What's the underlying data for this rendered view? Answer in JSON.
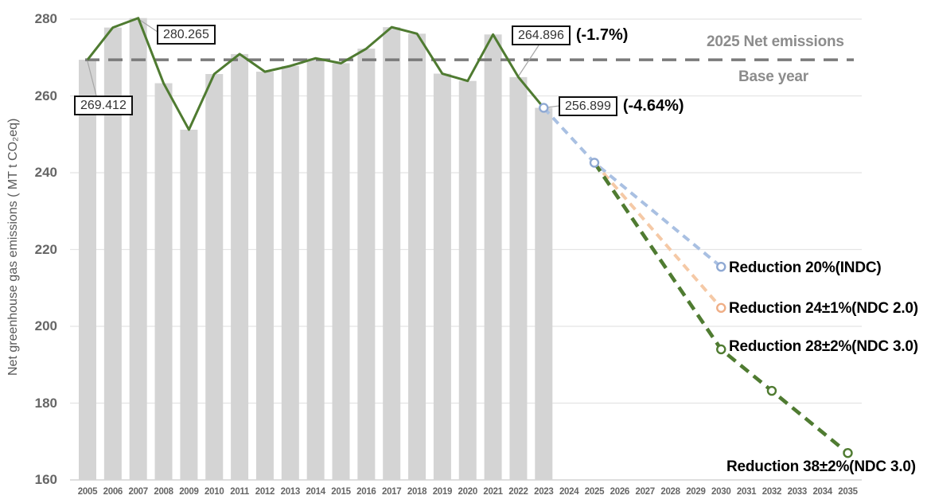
{
  "chart_data": {
    "type": "bar",
    "title": "",
    "xlabel": "",
    "ylabel": "Net greenhouse gas emissions ( MT t CO₂eq)",
    "ylim": [
      160,
      280
    ],
    "yticks": [
      280,
      260,
      240,
      220,
      200,
      180,
      160
    ],
    "grid": "horizontal",
    "years_axis": [
      2005,
      2006,
      2007,
      2008,
      2009,
      2010,
      2011,
      2012,
      2013,
      2014,
      2015,
      2016,
      2017,
      2018,
      2019,
      2020,
      2021,
      2022,
      2023,
      2024,
      2025,
      2026,
      2027,
      2028,
      2029,
      2030,
      2031,
      2032,
      2033,
      2034,
      2035
    ],
    "years_hist": [
      2005,
      2006,
      2007,
      2008,
      2009,
      2010,
      2011,
      2012,
      2013,
      2014,
      2015,
      2016,
      2017,
      2018,
      2019,
      2020,
      2021,
      2022,
      2023
    ],
    "values": [
      269.412,
      277.8,
      280.265,
      263.3,
      251.2,
      265.7,
      270.9,
      266.3,
      267.8,
      269.8,
      268.5,
      272.3,
      277.9,
      276.2,
      265.8,
      263.9,
      276.0,
      264.896,
      256.899
    ],
    "series_note": "gray bars and green solid line both show historical net emissions 2005-2023",
    "baseline": {
      "value": 269.412,
      "label_above": "2025 Net emissions",
      "label_below": "Base year",
      "color": "#7a7a7a"
    },
    "callouts": [
      {
        "text": "269.412",
        "year": 2005,
        "value": 269.412
      },
      {
        "text": "280.265",
        "year": 2007,
        "value": 280.265
      },
      {
        "text": "264.896",
        "pct": "(-1.7%)",
        "year": 2022,
        "value": 264.896
      },
      {
        "text": "256.899",
        "pct": "(-4.64%)",
        "year": 2023,
        "value": 256.899
      }
    ],
    "projections": [
      {
        "name": "INDC",
        "label": "Reduction 20%(INDC)",
        "color": "#a9c0e2",
        "marker_color": "#8fa9d3",
        "points": [
          [
            2023,
            256.899
          ],
          [
            2025,
            242.6
          ],
          [
            2030,
            215.5
          ]
        ],
        "markers": [
          [
            2023,
            256.899
          ],
          [
            2025,
            242.6
          ],
          [
            2030,
            215.5
          ]
        ]
      },
      {
        "name": "NDC 2.0",
        "label": "Reduction 24±1%(NDC 2.0)",
        "color": "#f5c9a6",
        "marker_color": "#efae86",
        "points": [
          [
            2025,
            242.6
          ],
          [
            2030,
            204.8
          ]
        ],
        "markers": [
          [
            2030,
            204.8
          ]
        ]
      },
      {
        "name": "NDC 3.0",
        "label": "Reduction 28±2%(NDC 3.0)",
        "label_2035": "Reduction 38±2%(NDC 3.0)",
        "color": "#4f7b31",
        "marker_color": "#4f7b31",
        "points": [
          [
            2025,
            242.6
          ],
          [
            2030,
            194.0
          ],
          [
            2035,
            167.0
          ]
        ],
        "markers": [
          [
            2030,
            194.0
          ],
          [
            2032,
            183.2
          ],
          [
            2035,
            167.0
          ]
        ]
      }
    ],
    "colors": {
      "bar": "#d4d4d4",
      "history_line": "#4f7b31",
      "grid": "#e4e4e4",
      "axis_line": "#c9c9c9",
      "leader_line": "#a6a6a6",
      "axis_text": "#666666"
    }
  }
}
